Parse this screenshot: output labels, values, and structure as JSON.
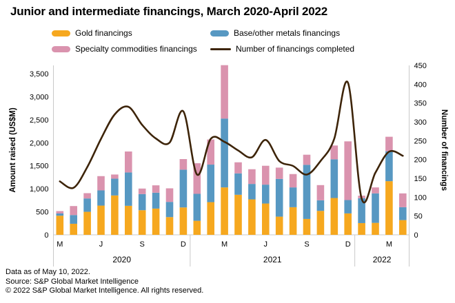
{
  "title": "Junior and intermediate financings, March 2020-April 2022",
  "legend": {
    "items": [
      {
        "label": "Gold financings",
        "type": "box",
        "color": "#F6A81F"
      },
      {
        "label": "Base/other metals financings",
        "type": "box",
        "color": "#5798C2"
      },
      {
        "label": "Specialty commodities financings",
        "type": "box",
        "color": "#DA93AE"
      },
      {
        "label": "Number of financings completed",
        "type": "line",
        "color": "#3D2409"
      }
    ]
  },
  "footer": {
    "lines": [
      "Data as of May 10, 2022.",
      "Source: S&P Global Market Intelligence",
      "© 2022 S&P Global Market Intelligence. All rights reserved."
    ]
  },
  "chart_data": {
    "type": "bar",
    "stacked": true,
    "ylabel_left": "Amount raised (US$M)",
    "ylabel_right": "Number of financings",
    "ylim_left": [
      0,
      3500
    ],
    "ylim_right": [
      0,
      450
    ],
    "yticks_left": [
      "0",
      "500",
      "1,000",
      "1,500",
      "2,000",
      "2,500",
      "3,000",
      "3,500"
    ],
    "yticks_right": [
      "0",
      "50",
      "100",
      "150",
      "200",
      "250",
      "300",
      "350",
      "400",
      "450"
    ],
    "grid": false,
    "legend_position": "top",
    "categories": [
      "Mar 2020",
      "Apr 2020",
      "May 2020",
      "Jun 2020",
      "Jul 2020",
      "Aug 2020",
      "Sep 2020",
      "Oct 2020",
      "Nov 2020",
      "Dec 2020",
      "Jan 2021",
      "Feb 2021",
      "Mar 2021",
      "Apr 2021",
      "May 2021",
      "Jun 2021",
      "Jul 2021",
      "Aug 2021",
      "Sep 2021",
      "Oct 2021",
      "Nov 2021",
      "Dec 2021",
      "Jan 2022",
      "Feb 2022",
      "Mar 2022",
      "Apr 2022"
    ],
    "series": [
      {
        "name": "Gold financings",
        "color": "#F6A81F",
        "values": [
          415,
          240,
          500,
          635,
          855,
          630,
          535,
          570,
          385,
          595,
          305,
          710,
          1030,
          870,
          770,
          680,
          395,
          600,
          345,
          520,
          800,
          465,
          255,
          260,
          1165,
          320
        ]
      },
      {
        "name": "Base/other metals financings",
        "color": "#5798C2",
        "values": [
          50,
          190,
          290,
          330,
          365,
          725,
          350,
          345,
          330,
          820,
          585,
          815,
          1495,
          465,
          335,
          410,
          820,
          430,
          1175,
          230,
          840,
          290,
          540,
          640,
          650,
          280
        ]
      },
      {
        "name": "Specialty commodities financings",
        "color": "#DA93AE",
        "values": [
          50,
          195,
          115,
          310,
          90,
          455,
          120,
          160,
          295,
          230,
          665,
          545,
          1160,
          240,
          320,
          410,
          245,
          290,
          220,
          330,
          300,
          1275,
          55,
          130,
          315,
          300
        ]
      }
    ],
    "line_series": {
      "name": "Number of financings completed",
      "axis": "right",
      "color": "#3D2409",
      "values": [
        142,
        125,
        180,
        255,
        320,
        340,
        292,
        256,
        245,
        328,
        160,
        255,
        247,
        224,
        206,
        252,
        196,
        183,
        160,
        196,
        255,
        404,
        96,
        165,
        221,
        210
      ]
    },
    "x_axis": {
      "tick_letters": [
        "M",
        "J",
        "S",
        "D",
        "M",
        "J",
        "S",
        "D",
        "M"
      ],
      "tick_positions": [
        0,
        3,
        6,
        9,
        12,
        15,
        18,
        21,
        24
      ],
      "year_labels": [
        "2020",
        "2021",
        "2022"
      ],
      "separators_after_index": [
        9,
        21
      ]
    },
    "colors": {
      "axis": "#C8C8C8",
      "text": "#000000"
    }
  }
}
